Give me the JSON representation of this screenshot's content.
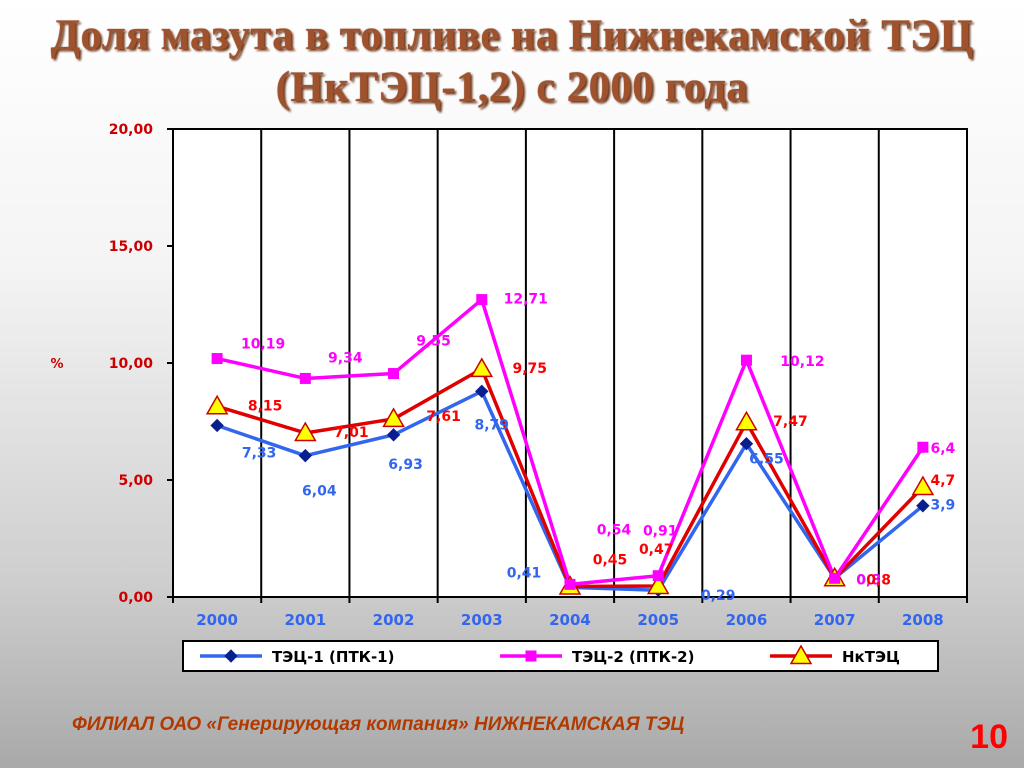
{
  "title": {
    "line1": "Доля мазута в топливе на Нижнекамской ТЭЦ",
    "line2": "(НкТЭЦ-1,2) с 2000 года"
  },
  "footer": "ФИЛИАЛ ОАО «Генерирующая компания» НИЖНЕКАМСКАЯ ТЭЦ",
  "page_number": "10",
  "chart_data": {
    "type": "line",
    "ylabel": "%",
    "ylim": [
      0,
      20
    ],
    "y_ticks": [
      "0,00",
      "5,00",
      "10,00",
      "15,00",
      "20,00"
    ],
    "y_tick_values": [
      0,
      5,
      10,
      15,
      20
    ],
    "categories": [
      "2000",
      "2001",
      "2002",
      "2003",
      "2004",
      "2005",
      "2006",
      "2007",
      "2008"
    ],
    "legend_position": "bottom",
    "grid": "vertical",
    "series": [
      {
        "name": "ТЭЦ-1 (ПТК-1)",
        "color": "#3366ee",
        "label_color": "#3366ee",
        "marker": "diamond",
        "values": [
          7.33,
          6.04,
          6.93,
          8.79,
          0.41,
          0.29,
          6.55,
          0.8,
          3.9
        ],
        "labels": [
          "7,33",
          "6,04",
          "6,93",
          "8,79",
          "0,41",
          "0,29",
          "6,55",
          "0,8",
          "3,9"
        ]
      },
      {
        "name": "ТЭЦ-2 (ПТК-2)",
        "color": "#ff00ff",
        "label_color": "#ff00ff",
        "marker": "square",
        "values": [
          10.19,
          9.34,
          9.55,
          12.71,
          0.54,
          0.91,
          10.12,
          0.8,
          6.4
        ],
        "labels": [
          "10,19",
          "9,34",
          "9,55",
          "12,71",
          "0,54",
          "0,91",
          "10,12",
          "0,8",
          "6,4"
        ]
      },
      {
        "name": "НкТЭЦ",
        "color": "#e00000",
        "label_color": "#ff0000",
        "marker": "triangle",
        "values": [
          8.15,
          7.01,
          7.61,
          9.75,
          0.45,
          0.47,
          7.47,
          0.8,
          4.7
        ],
        "labels": [
          "8,15",
          "7,01",
          "7,61",
          "9,75",
          "0,45",
          "0,47",
          "7,47",
          "0,8",
          "4,7"
        ]
      }
    ]
  }
}
